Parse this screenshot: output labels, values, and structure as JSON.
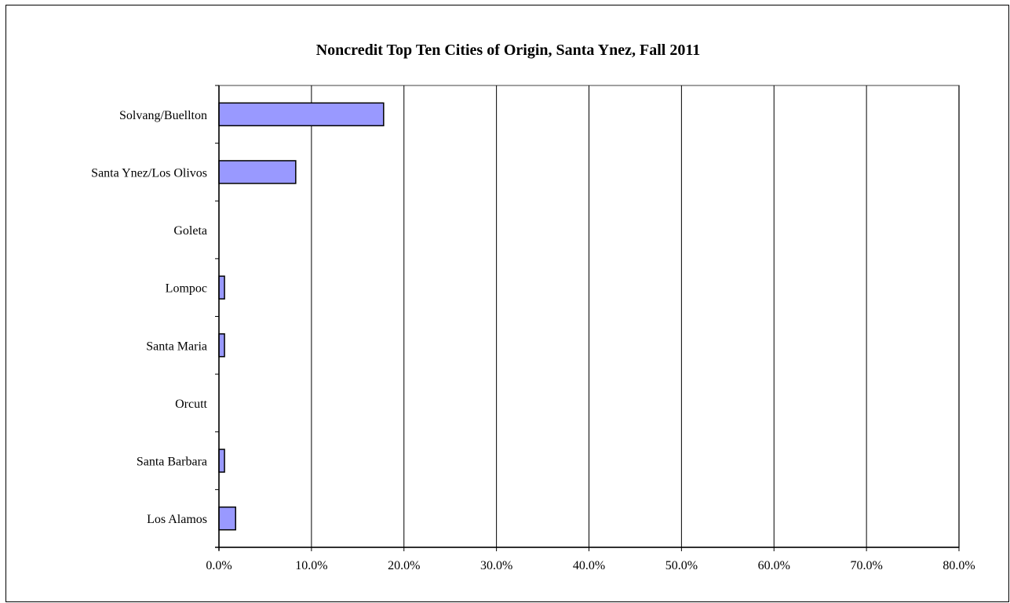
{
  "chart_data": {
    "type": "bar",
    "orientation": "horizontal",
    "title": "Noncredit Top Ten Cities of Origin, Santa Ynez, Fall 2011",
    "xlabel": "",
    "ylabel": "",
    "categories": [
      "Solvang/Buellton",
      "Santa Ynez/Los Olivos",
      "Goleta",
      "Lompoc",
      "Santa Maria",
      "Orcutt",
      "Santa Barbara",
      "Los Alamos"
    ],
    "values": [
      17.8,
      8.3,
      0.0,
      0.6,
      0.6,
      0.0,
      0.6,
      1.8
    ],
    "value_unit": "%",
    "xlim": [
      0,
      80
    ],
    "xticks": [
      0,
      10,
      20,
      30,
      40,
      50,
      60,
      70,
      80
    ],
    "xtick_labels": [
      "0.0%",
      "10.0%",
      "20.0%",
      "30.0%",
      "40.0%",
      "50.0%",
      "60.0%",
      "70.0%",
      "80.0%"
    ],
    "grid": "vertical",
    "legend": "none",
    "colors": {
      "bar_fill": "#9999ff",
      "bar_stroke": "#000000",
      "gridline": "#000000",
      "plot_border": "#808080",
      "axis": "#000000",
      "background": "#ffffff"
    }
  }
}
